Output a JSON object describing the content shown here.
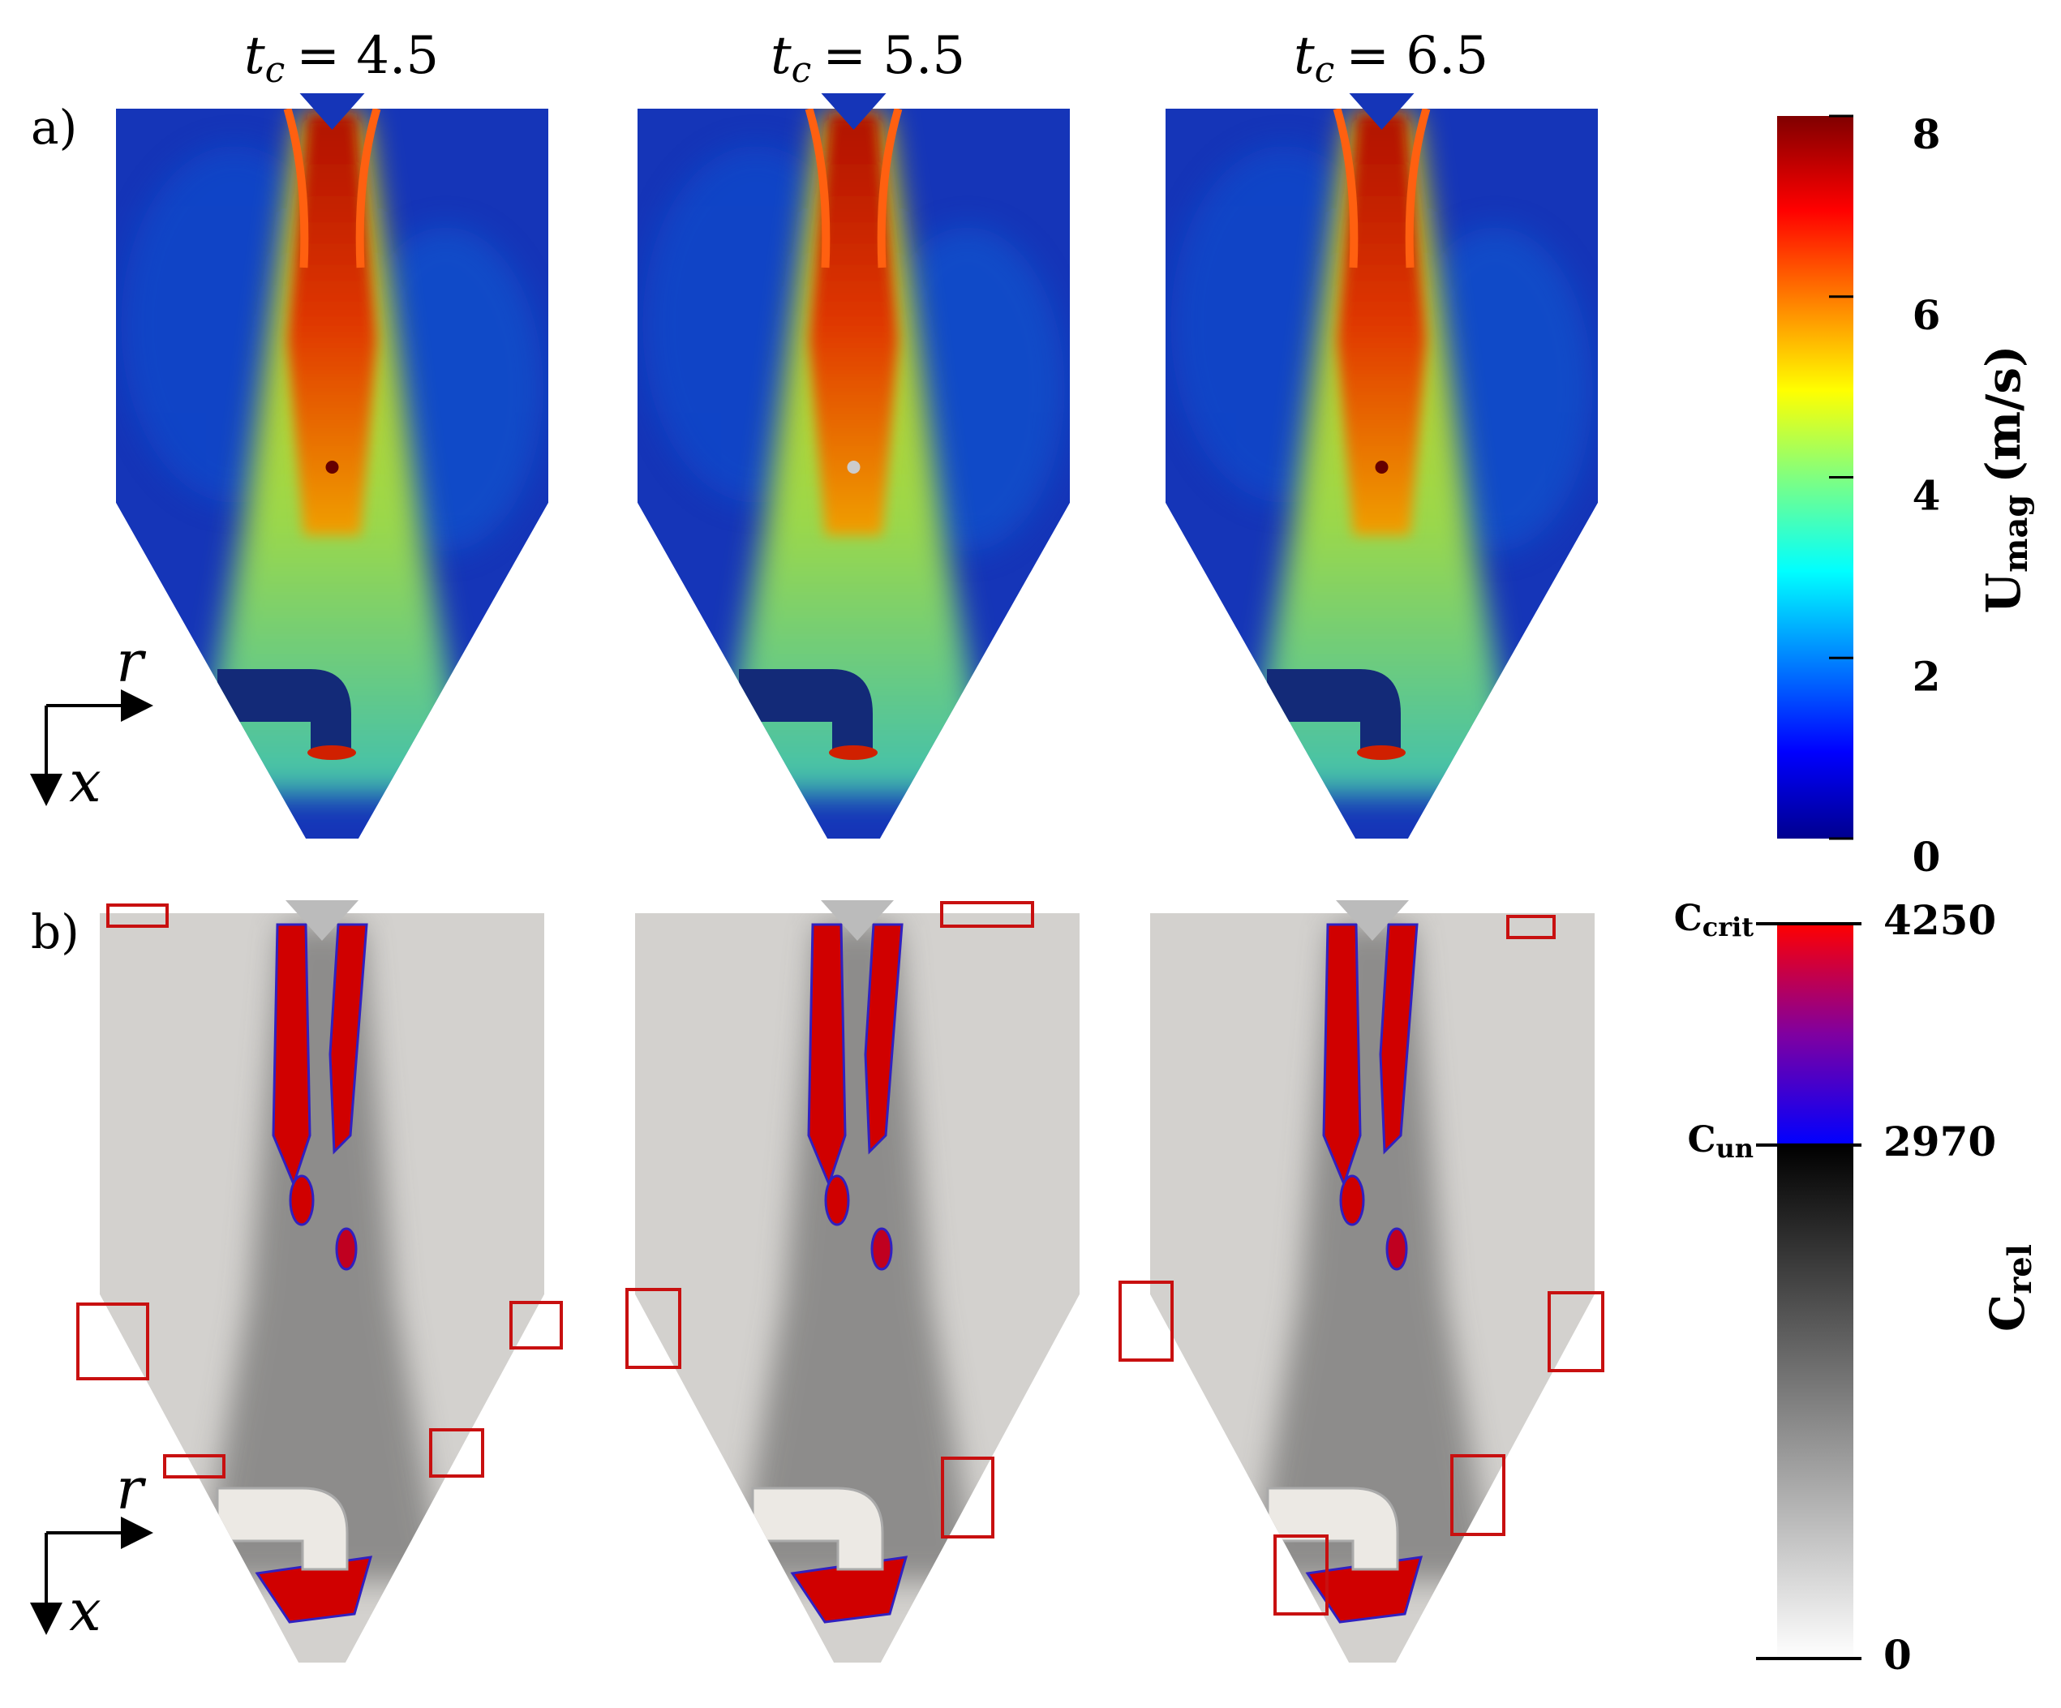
{
  "times": [
    {
      "symbol": "t",
      "subscript": "c",
      "value": "= 4.5"
    },
    {
      "symbol": "t",
      "subscript": "c",
      "value": "= 5.5"
    },
    {
      "symbol": "t",
      "subscript": "c",
      "value": "= 6.5"
    }
  ],
  "panel_labels": [
    "a)",
    "b)"
  ],
  "axes": {
    "radial": "r",
    "axial": "x"
  },
  "colorbars": [
    {
      "symbol": "U",
      "subscript": "mag",
      "unit": "(m/s)",
      "ticks": [
        0,
        2,
        4,
        6,
        8
      ]
    },
    {
      "symbol": "C",
      "subscript": "rel",
      "ticks": [
        0,
        2970,
        4250
      ],
      "markers": [
        {
          "value": 2970,
          "symbol": "C",
          "subscript": "un"
        },
        {
          "value": 4250,
          "symbol": "C",
          "subscript": "crit"
        }
      ]
    }
  ]
}
